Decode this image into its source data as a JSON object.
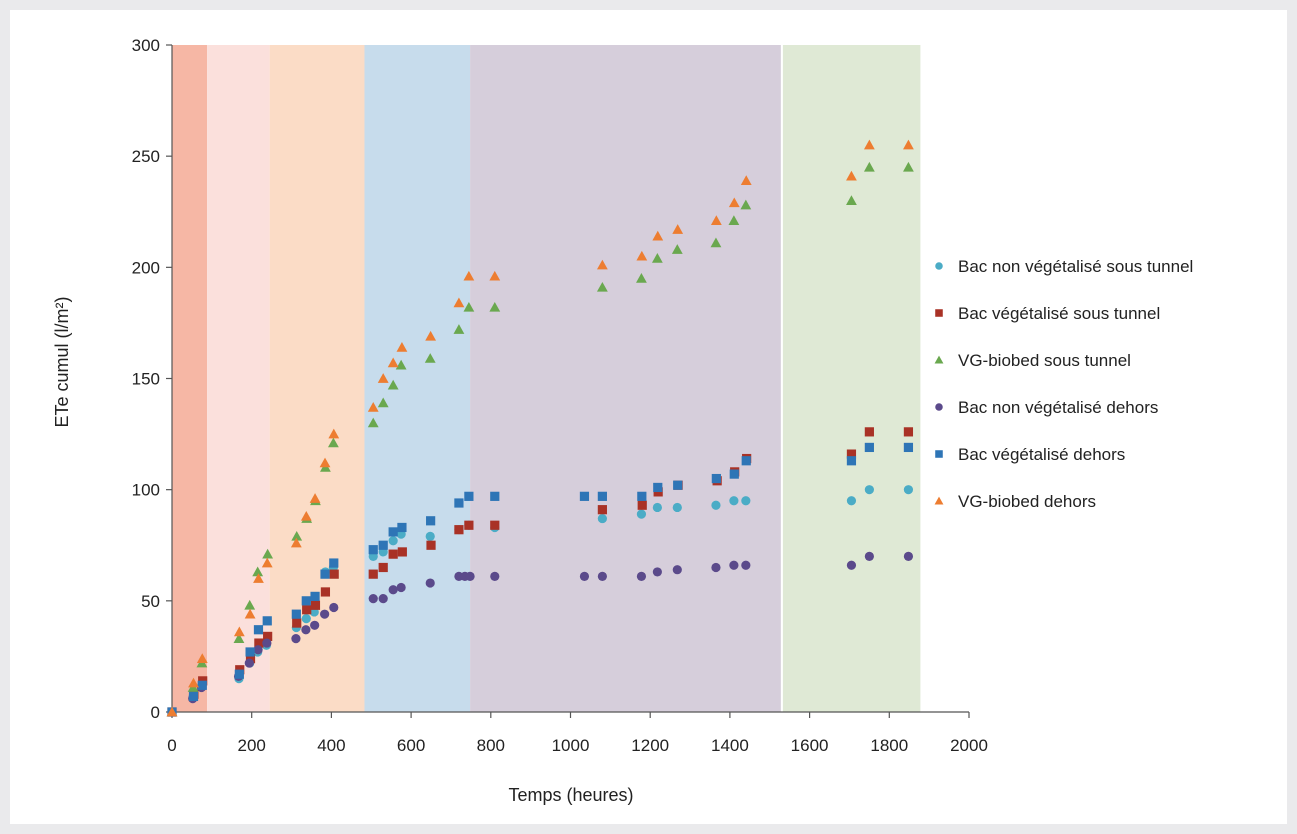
{
  "chart_data": {
    "type": "scatter",
    "xlabel": "Temps (heures)",
    "ylabel": "ETe cumul (l/m²)",
    "xlim": [
      0,
      2000
    ],
    "ylim": [
      0,
      300
    ],
    "xticks": [
      0,
      200,
      400,
      600,
      800,
      1000,
      1200,
      1400,
      1600,
      1800,
      2000
    ],
    "yticks": [
      0,
      50,
      100,
      150,
      200,
      250,
      300
    ],
    "grid": false,
    "legend_position": "right",
    "phases": [
      {
        "x0": 0,
        "x1": 88,
        "color": "#f6b7a5"
      },
      {
        "x0": 88,
        "x1": 245,
        "color": "#fbe0dc"
      },
      {
        "x0": 245,
        "x1": 483,
        "color": "#fbdcc6"
      },
      {
        "x0": 483,
        "x1": 748,
        "color": "#c7dcec"
      },
      {
        "x0": 748,
        "x1": 1528,
        "color": "#d6cedb"
      },
      {
        "x0": 1528,
        "x1": 1533,
        "color": "#ffffff"
      },
      {
        "x0": 1533,
        "x1": 1878,
        "color": "#dfe9d5"
      }
    ],
    "series": [
      {
        "name": "Bac non végétalisé sous tunnel",
        "marker": "circle",
        "color": "#4bacc6",
        "points": [
          [
            0,
            0
          ],
          [
            53,
            7
          ],
          [
            75,
            12
          ],
          [
            168,
            15
          ],
          [
            195,
            22
          ],
          [
            215,
            27
          ],
          [
            237,
            30
          ],
          [
            312,
            38
          ],
          [
            337,
            42
          ],
          [
            357,
            45
          ],
          [
            385,
            63
          ],
          [
            405,
            65
          ],
          [
            505,
            70
          ],
          [
            530,
            72
          ],
          [
            555,
            77
          ],
          [
            575,
            80
          ],
          [
            648,
            79
          ],
          [
            720,
            82
          ],
          [
            745,
            84
          ],
          [
            810,
            83
          ],
          [
            1080,
            87
          ],
          [
            1178,
            89
          ],
          [
            1218,
            92
          ],
          [
            1268,
            92
          ],
          [
            1365,
            93
          ],
          [
            1410,
            95
          ],
          [
            1440,
            95
          ],
          [
            1705,
            95
          ],
          [
            1750,
            100
          ],
          [
            1848,
            100
          ]
        ]
      },
      {
        "name": "Bac végétalisé sous tunnel",
        "marker": "square",
        "color": "#a93226",
        "points": [
          [
            0,
            0
          ],
          [
            55,
            8
          ],
          [
            77,
            14
          ],
          [
            170,
            19
          ],
          [
            197,
            24
          ],
          [
            218,
            31
          ],
          [
            240,
            34
          ],
          [
            313,
            40
          ],
          [
            338,
            46
          ],
          [
            360,
            48
          ],
          [
            385,
            54
          ],
          [
            407,
            62
          ],
          [
            505,
            62
          ],
          [
            530,
            65
          ],
          [
            555,
            71
          ],
          [
            578,
            72
          ],
          [
            650,
            75
          ],
          [
            720,
            82
          ],
          [
            745,
            84
          ],
          [
            810,
            84
          ],
          [
            1080,
            91
          ],
          [
            1180,
            93
          ],
          [
            1220,
            99
          ],
          [
            1270,
            102
          ],
          [
            1368,
            104
          ],
          [
            1412,
            108
          ],
          [
            1442,
            114
          ],
          [
            1705,
            116
          ],
          [
            1750,
            126
          ],
          [
            1848,
            126
          ]
        ]
      },
      {
        "name": "VG-biobed sous tunnel",
        "marker": "triangle",
        "color": "#6aa84f",
        "points": [
          [
            0,
            0
          ],
          [
            53,
            11
          ],
          [
            75,
            22
          ],
          [
            168,
            33
          ],
          [
            195,
            48
          ],
          [
            215,
            63
          ],
          [
            240,
            71
          ],
          [
            313,
            79
          ],
          [
            338,
            87
          ],
          [
            360,
            95
          ],
          [
            385,
            110
          ],
          [
            405,
            121
          ],
          [
            505,
            130
          ],
          [
            530,
            139
          ],
          [
            555,
            147
          ],
          [
            575,
            156
          ],
          [
            648,
            159
          ],
          [
            720,
            172
          ],
          [
            745,
            182
          ],
          [
            810,
            182
          ],
          [
            1080,
            191
          ],
          [
            1178,
            195
          ],
          [
            1218,
            204
          ],
          [
            1268,
            208
          ],
          [
            1365,
            211
          ],
          [
            1410,
            221
          ],
          [
            1440,
            228
          ],
          [
            1705,
            230
          ],
          [
            1750,
            245
          ],
          [
            1848,
            245
          ]
        ]
      },
      {
        "name": "Bac non végétalisé dehors",
        "marker": "circle",
        "color": "#5b4a8b",
        "points": [
          [
            0,
            0
          ],
          [
            52,
            6
          ],
          [
            74,
            11
          ],
          [
            167,
            16
          ],
          [
            194,
            22
          ],
          [
            216,
            28
          ],
          [
            238,
            31
          ],
          [
            311,
            33
          ],
          [
            336,
            37
          ],
          [
            358,
            39
          ],
          [
            383,
            44
          ],
          [
            406,
            47
          ],
          [
            505,
            51
          ],
          [
            530,
            51
          ],
          [
            555,
            55
          ],
          [
            575,
            56
          ],
          [
            648,
            58
          ],
          [
            720,
            61
          ],
          [
            735,
            61
          ],
          [
            748,
            61
          ],
          [
            810,
            61
          ],
          [
            1035,
            61
          ],
          [
            1080,
            61
          ],
          [
            1178,
            61
          ],
          [
            1218,
            63
          ],
          [
            1268,
            64
          ],
          [
            1365,
            65
          ],
          [
            1410,
            66
          ],
          [
            1440,
            66
          ],
          [
            1705,
            66
          ],
          [
            1750,
            70
          ],
          [
            1848,
            70
          ]
        ]
      },
      {
        "name": "Bac végétalisé dehors",
        "marker": "square",
        "color": "#2e75b6",
        "points": [
          [
            0,
            0
          ],
          [
            54,
            7
          ],
          [
            76,
            12
          ],
          [
            169,
            17
          ],
          [
            196,
            27
          ],
          [
            217,
            37
          ],
          [
            239,
            41
          ],
          [
            312,
            44
          ],
          [
            337,
            50
          ],
          [
            359,
            52
          ],
          [
            384,
            62
          ],
          [
            406,
            67
          ],
          [
            505,
            73
          ],
          [
            530,
            75
          ],
          [
            555,
            81
          ],
          [
            577,
            83
          ],
          [
            649,
            86
          ],
          [
            720,
            94
          ],
          [
            745,
            97
          ],
          [
            810,
            97
          ],
          [
            1035,
            97
          ],
          [
            1080,
            97
          ],
          [
            1179,
            97
          ],
          [
            1219,
            101
          ],
          [
            1269,
            102
          ],
          [
            1366,
            105
          ],
          [
            1411,
            107
          ],
          [
            1441,
            113
          ],
          [
            1705,
            113
          ],
          [
            1750,
            119
          ],
          [
            1848,
            119
          ]
        ]
      },
      {
        "name": "VG-biobed dehors",
        "marker": "triangle",
        "color": "#ed7d31",
        "points": [
          [
            0,
            0
          ],
          [
            54,
            13
          ],
          [
            76,
            24
          ],
          [
            169,
            36
          ],
          [
            196,
            44
          ],
          [
            217,
            60
          ],
          [
            239,
            67
          ],
          [
            312,
            76
          ],
          [
            337,
            88
          ],
          [
            359,
            96
          ],
          [
            384,
            112
          ],
          [
            406,
            125
          ],
          [
            505,
            137
          ],
          [
            530,
            150
          ],
          [
            555,
            157
          ],
          [
            577,
            164
          ],
          [
            649,
            169
          ],
          [
            720,
            184
          ],
          [
            745,
            196
          ],
          [
            810,
            196
          ],
          [
            1080,
            201
          ],
          [
            1179,
            205
          ],
          [
            1219,
            214
          ],
          [
            1269,
            217
          ],
          [
            1366,
            221
          ],
          [
            1411,
            229
          ],
          [
            1441,
            239
          ],
          [
            1705,
            241
          ],
          [
            1750,
            255
          ],
          [
            1848,
            255
          ]
        ]
      }
    ]
  }
}
